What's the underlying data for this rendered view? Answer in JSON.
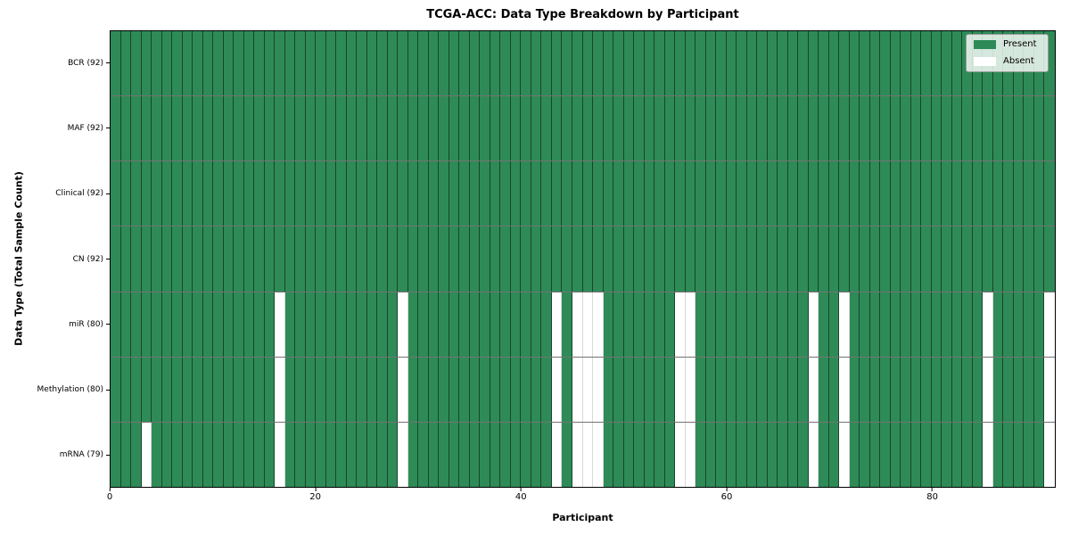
{
  "chart_data": {
    "type": "heatmap",
    "title": "TCGA-ACC: Data Type Breakdown by Participant",
    "xlabel": "Participant",
    "ylabel": "Data Type (Total Sample Count)",
    "n_participants": 92,
    "x_ticks": [
      0,
      20,
      40,
      60,
      80
    ],
    "grid": "cell-edges",
    "legend_position": "upper-right",
    "legend": {
      "entries": [
        {
          "label": "Present",
          "color": "#2e8b57"
        },
        {
          "label": "Absent",
          "color": "#ffffff"
        }
      ]
    },
    "colors": {
      "present": "#2e8b57",
      "absent": "#ffffff"
    },
    "rows": [
      {
        "label": "BCR (92)",
        "data_type": "BCR",
        "present_count": 92,
        "absent_participants": []
      },
      {
        "label": "MAF (92)",
        "data_type": "MAF",
        "present_count": 92,
        "absent_participants": []
      },
      {
        "label": "Clinical (92)",
        "data_type": "Clinical",
        "present_count": 92,
        "absent_participants": []
      },
      {
        "label": "CN (92)",
        "data_type": "CN",
        "present_count": 92,
        "absent_participants": []
      },
      {
        "label": "miR (80)",
        "data_type": "miR",
        "present_count": 80,
        "absent_participants": [
          16,
          28,
          43,
          45,
          46,
          47,
          55,
          56,
          68,
          71,
          85,
          91
        ]
      },
      {
        "label": "Methylation (80)",
        "data_type": "Methylation",
        "present_count": 80,
        "absent_participants": [
          16,
          28,
          43,
          45,
          46,
          47,
          55,
          56,
          68,
          71,
          85,
          91
        ]
      },
      {
        "label": "mRNA (79)",
        "data_type": "mRNA",
        "present_count": 79,
        "absent_participants": [
          3,
          16,
          28,
          43,
          45,
          46,
          47,
          55,
          56,
          68,
          71,
          85,
          91
        ]
      }
    ]
  }
}
